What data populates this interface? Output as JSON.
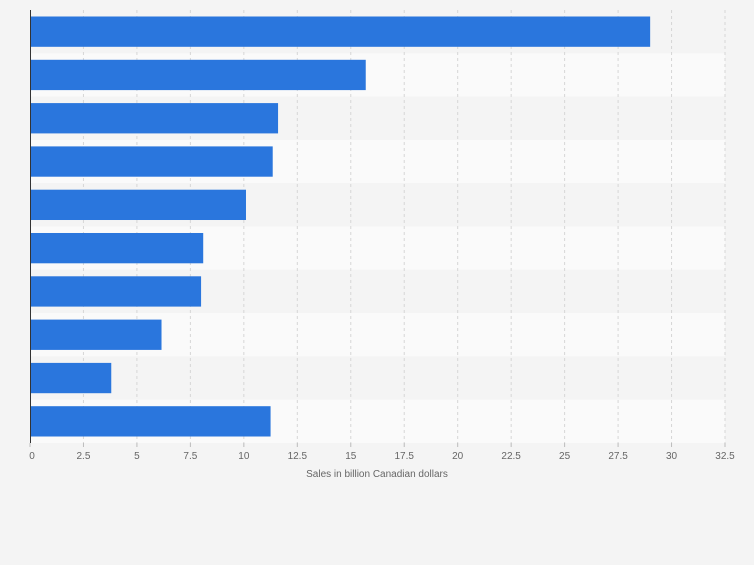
{
  "chart_data": {
    "type": "bar",
    "orientation": "horizontal",
    "categories": [
      "",
      "",
      "",
      "",
      "",
      "",
      "",
      "",
      "",
      ""
    ],
    "values": [
      29.0,
      15.7,
      11.6,
      11.35,
      10.1,
      8.1,
      8.0,
      6.15,
      3.8,
      11.25
    ],
    "title": "",
    "xlabel": "Sales in billion Canadian dollars",
    "ylabel": "",
    "xlim": [
      0,
      32.5
    ],
    "xticks": [
      "0",
      "2.5",
      "5",
      "7.5",
      "10",
      "12.5",
      "15",
      "17.5",
      "20",
      "22.5",
      "25",
      "27.5",
      "30",
      "32.5"
    ],
    "grid": true,
    "legend": "none",
    "bar_color": "#2a76dd"
  }
}
